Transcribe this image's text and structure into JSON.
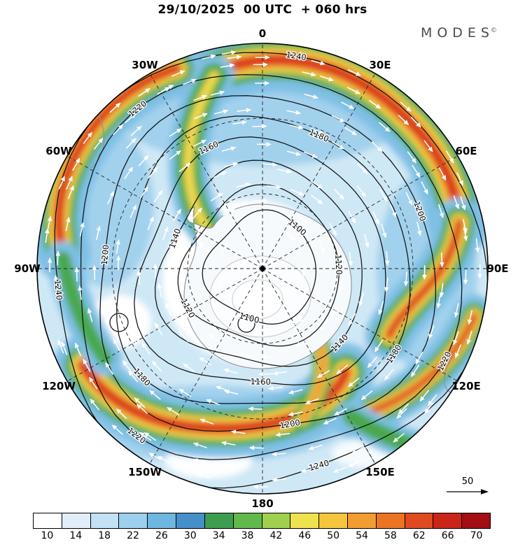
{
  "header": {
    "title": "29/10/2025  00 UTC  + 060 hrs",
    "logo_text": "MODES",
    "logo_mark": "©"
  },
  "map": {
    "longitude_labels": [
      {
        "label": "0",
        "angle": 0
      },
      {
        "label": "30E",
        "angle": 30
      },
      {
        "label": "60E",
        "angle": 60
      },
      {
        "label": "90E",
        "angle": 90
      },
      {
        "label": "120E",
        "angle": 120
      },
      {
        "label": "150E",
        "angle": 150
      },
      {
        "label": "180",
        "angle": 180
      },
      {
        "label": "150W",
        "angle": 210
      },
      {
        "label": "120W",
        "angle": 240
      },
      {
        "label": "90W",
        "angle": 270
      },
      {
        "label": "60W",
        "angle": 300
      },
      {
        "label": "30W",
        "angle": 330
      }
    ],
    "contour_levels": [
      "1100",
      "1120",
      "1140",
      "1160",
      "1180",
      "1200",
      "1220",
      "1240"
    ]
  },
  "palette": {
    "base": "#cfe8f6",
    "accent": "#8ac5e8",
    "jet_blue": "#7fc0e5",
    "jet_green": "#4aa84e",
    "jet_yellow": "#f2d94d",
    "jet_orange": "#f0922e",
    "jet_red": "#d92f1d",
    "contour": "#111111",
    "coast": "#8a9096",
    "arrow": "#ffffff"
  },
  "colorbar": {
    "tick_labels": [
      "10",
      "14",
      "18",
      "22",
      "26",
      "30",
      "34",
      "38",
      "42",
      "46",
      "50",
      "54",
      "58",
      "62",
      "66",
      "70"
    ],
    "colors": [
      "#ffffff",
      "#dfeef8",
      "#c2e1f4",
      "#9cd0ec",
      "#6fb7e0",
      "#458fcb",
      "#3d9e4f",
      "#61b94b",
      "#9fd04e",
      "#eee24e",
      "#f6c53e",
      "#f29c31",
      "#eb7424",
      "#df4a20",
      "#cb2418",
      "#a30d14"
    ]
  },
  "reference_vector": {
    "label": "50"
  },
  "chart_data": {
    "type": "heatmap",
    "title": "29/10/2025 00 UTC + 060 hrs",
    "projection": "south-polar-stereographic",
    "shaded_field": "wind speed",
    "colorbar_levels": [
      10,
      14,
      18,
      22,
      26,
      30,
      34,
      38,
      42,
      46,
      50,
      54,
      58,
      62,
      66,
      70
    ],
    "contour_field_levels": [
      1100,
      1120,
      1140,
      1160,
      1180,
      1200,
      1220,
      1240
    ],
    "longitude_ticks": [
      "0",
      "30E",
      "60E",
      "90E",
      "120E",
      "150E",
      "180",
      "150W",
      "120W",
      "90W",
      "60W",
      "30W"
    ],
    "vector_overlay": "wind arrows",
    "reference_vector": 50,
    "legend_position": "bottom",
    "branding": "MODES©"
  }
}
